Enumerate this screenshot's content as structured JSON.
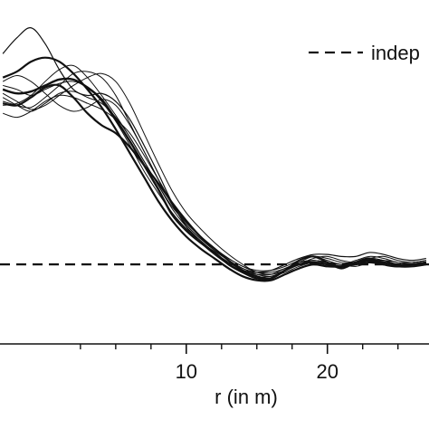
{
  "chart_data": {
    "type": "line",
    "xlabel": "r (in m)",
    "ylabel": "",
    "xlim": [
      -3.2,
      27.2
    ],
    "ylim": [
      -0.2,
      1.53
    ],
    "x_ticks": [
      10,
      20
    ],
    "x_minor_ticks": [
      2.5,
      5,
      7.5,
      12.5,
      15,
      17.5,
      22.5,
      25
    ],
    "grid": false,
    "legend": {
      "position": "top-right",
      "entries": [
        {
          "label": "indep",
          "style": "dashed"
        }
      ]
    },
    "reference_line": {
      "style": "dashed",
      "y": 0.2
    },
    "series": [
      {
        "width": 2.4,
        "x": [
          -3,
          -2,
          -1,
          0,
          1,
          2,
          3,
          4,
          5,
          6,
          7,
          8,
          9,
          10,
          11,
          12,
          13,
          14,
          15,
          16,
          17,
          18,
          19,
          20,
          21,
          22,
          23,
          24,
          25,
          26,
          27
        ],
        "y": [
          1.08,
          1.06,
          1.07,
          1.1,
          1.13,
          1.13,
          1.09,
          1.03,
          0.93,
          0.82,
          0.7,
          0.58,
          0.45,
          0.37,
          0.31,
          0.26,
          0.2,
          0.16,
          0.13,
          0.13,
          0.17,
          0.2,
          0.21,
          0.2,
          0.19,
          0.21,
          0.22,
          0.21,
          0.2,
          0.2,
          0.21
        ]
      },
      {
        "width": 2.2,
        "x": [
          -3,
          -2,
          -1,
          0,
          1,
          2,
          3,
          4,
          5,
          6,
          7,
          8,
          9,
          10,
          11,
          12,
          13,
          14,
          15,
          16,
          17,
          18,
          19,
          20,
          21,
          22,
          23,
          24,
          25,
          26,
          27
        ],
        "y": [
          1.01,
          1.0,
          1.04,
          1.09,
          1.1,
          1.04,
          0.96,
          0.9,
          0.86,
          0.79,
          0.7,
          0.61,
          0.51,
          0.42,
          0.34,
          0.28,
          0.22,
          0.17,
          0.14,
          0.13,
          0.17,
          0.22,
          0.24,
          0.21,
          0.18,
          0.21,
          0.23,
          0.2,
          0.19,
          0.2,
          0.21
        ]
      },
      {
        "width": 2.2,
        "x": [
          -3,
          -2,
          -1,
          0,
          1,
          2,
          3,
          4,
          5,
          6,
          7,
          8,
          9,
          10,
          11,
          12,
          13,
          14,
          15,
          16,
          17,
          18,
          19,
          20,
          21,
          22,
          23,
          24,
          25,
          26,
          27
        ],
        "y": [
          1.14,
          1.17,
          1.22,
          1.24,
          1.22,
          1.16,
          1.08,
          0.99,
          0.88,
          0.76,
          0.64,
          0.52,
          0.42,
          0.34,
          0.28,
          0.23,
          0.18,
          0.14,
          0.12,
          0.12,
          0.15,
          0.18,
          0.2,
          0.19,
          0.19,
          0.2,
          0.21,
          0.2,
          0.19,
          0.19,
          0.2
        ]
      },
      {
        "width": 1.2,
        "x": [
          -3,
          -2,
          -1,
          0,
          1,
          2,
          3,
          4,
          5,
          6,
          7,
          8,
          9,
          10,
          11,
          12,
          13,
          14,
          15,
          16,
          17,
          18,
          19,
          20,
          21,
          22,
          23,
          24,
          25,
          26,
          27
        ],
        "y": [
          1.26,
          1.34,
          1.39,
          1.31,
          1.18,
          1.08,
          1.05,
          1.06,
          1.02,
          0.93,
          0.8,
          0.66,
          0.51,
          0.39,
          0.31,
          0.25,
          0.2,
          0.17,
          0.16,
          0.17,
          0.2,
          0.23,
          0.25,
          0.25,
          0.24,
          0.24,
          0.26,
          0.25,
          0.23,
          0.22,
          0.23
        ]
      },
      {
        "width": 1.0,
        "x": [
          -3,
          -2,
          -1,
          0,
          1,
          2,
          3,
          4,
          5,
          6,
          7,
          8,
          9,
          10,
          11,
          12,
          13,
          14,
          15,
          16,
          17,
          18,
          19,
          20,
          21,
          22,
          23,
          24,
          25,
          26,
          27
        ],
        "y": [
          1.02,
          1.0,
          0.99,
          1.04,
          1.1,
          1.16,
          1.17,
          1.14,
          1.05,
          0.91,
          0.77,
          0.63,
          0.5,
          0.4,
          0.33,
          0.28,
          0.23,
          0.19,
          0.16,
          0.15,
          0.17,
          0.2,
          0.23,
          0.24,
          0.22,
          0.21,
          0.23,
          0.24,
          0.22,
          0.21,
          0.22
        ]
      },
      {
        "width": 1.0,
        "x": [
          -3,
          -2,
          -1,
          0,
          1,
          2,
          3,
          4,
          5,
          6,
          7,
          8,
          9,
          10,
          11,
          12,
          13,
          14,
          15,
          16,
          17,
          18,
          19,
          20,
          21,
          22,
          23,
          24,
          25,
          26,
          27
        ],
        "y": [
          1.1,
          1.08,
          1.05,
          1.08,
          1.11,
          1.12,
          1.09,
          1.02,
          0.92,
          0.8,
          0.67,
          0.56,
          0.46,
          0.38,
          0.32,
          0.26,
          0.21,
          0.17,
          0.15,
          0.15,
          0.18,
          0.21,
          0.22,
          0.21,
          0.2,
          0.2,
          0.21,
          0.21,
          0.2,
          0.2,
          0.2
        ]
      },
      {
        "width": 1.0,
        "x": [
          -3,
          -2,
          -1,
          0,
          1,
          2,
          3,
          4,
          5,
          6,
          7,
          8,
          9,
          10,
          11,
          12,
          13,
          14,
          15,
          16,
          17,
          18,
          19,
          20,
          21,
          22,
          23,
          24,
          25,
          26,
          27
        ],
        "y": [
          1.06,
          1.02,
          0.98,
          1.0,
          1.05,
          1.1,
          1.14,
          1.16,
          1.12,
          1.01,
          0.86,
          0.71,
          0.57,
          0.46,
          0.38,
          0.31,
          0.25,
          0.2,
          0.16,
          0.15,
          0.17,
          0.2,
          0.22,
          0.21,
          0.2,
          0.21,
          0.23,
          0.22,
          0.2,
          0.2,
          0.21
        ]
      },
      {
        "width": 1.0,
        "x": [
          -3,
          -2,
          -1,
          0,
          1,
          2,
          3,
          4,
          5,
          6,
          7,
          8,
          9,
          10,
          11,
          12,
          13,
          14,
          15,
          16,
          17,
          18,
          19,
          20,
          21,
          22,
          23,
          24,
          25,
          26,
          27
        ],
        "y": [
          1.04,
          1.0,
          0.97,
          1.01,
          1.06,
          1.07,
          1.04,
          1.01,
          0.94,
          0.84,
          0.72,
          0.6,
          0.49,
          0.41,
          0.34,
          0.28,
          0.23,
          0.19,
          0.17,
          0.17,
          0.19,
          0.22,
          0.24,
          0.22,
          0.2,
          0.22,
          0.24,
          0.23,
          0.21,
          0.21,
          0.22
        ]
      },
      {
        "width": 1.0,
        "x": [
          -3,
          -2,
          -1,
          0,
          1,
          2,
          3,
          4,
          5,
          6,
          7,
          8,
          9,
          10,
          11,
          12,
          13,
          14,
          15,
          16,
          17,
          18,
          19,
          20,
          21,
          22,
          23,
          24,
          25,
          26,
          27
        ],
        "y": [
          1.12,
          1.15,
          1.12,
          1.06,
          1.0,
          0.97,
          0.99,
          1.03,
          1.0,
          0.9,
          0.77,
          0.63,
          0.5,
          0.4,
          0.33,
          0.27,
          0.22,
          0.18,
          0.15,
          0.14,
          0.16,
          0.19,
          0.21,
          0.21,
          0.2,
          0.19,
          0.21,
          0.22,
          0.21,
          0.2,
          0.2
        ]
      },
      {
        "width": 1.0,
        "x": [
          -3,
          -2,
          -1,
          0,
          1,
          2,
          3,
          4,
          5,
          6,
          7,
          8,
          9,
          10,
          11,
          12,
          13,
          14,
          15,
          16,
          17,
          18,
          19,
          20,
          21,
          22,
          23,
          24,
          25,
          26,
          27
        ],
        "y": [
          0.96,
          0.94,
          0.97,
          1.02,
          1.05,
          1.04,
          1.01,
          0.98,
          0.93,
          0.86,
          0.75,
          0.63,
          0.51,
          0.41,
          0.34,
          0.27,
          0.22,
          0.18,
          0.16,
          0.16,
          0.18,
          0.21,
          0.22,
          0.21,
          0.19,
          0.2,
          0.22,
          0.22,
          0.2,
          0.2,
          0.21
        ]
      },
      {
        "width": 1.0,
        "x": [
          -3,
          -2,
          -1,
          0,
          1,
          2,
          3,
          4,
          5,
          6,
          7,
          8,
          9,
          10,
          11,
          12,
          13,
          14,
          15,
          16,
          17,
          18,
          19,
          20,
          21,
          22,
          23,
          24,
          25,
          26,
          27
        ],
        "y": [
          1.0,
          1.01,
          1.05,
          1.12,
          1.18,
          1.2,
          1.14,
          1.05,
          0.95,
          0.84,
          0.72,
          0.6,
          0.48,
          0.39,
          0.32,
          0.26,
          0.21,
          0.17,
          0.14,
          0.14,
          0.17,
          0.21,
          0.24,
          0.23,
          0.21,
          0.21,
          0.23,
          0.22,
          0.2,
          0.2,
          0.21
        ]
      }
    ]
  }
}
